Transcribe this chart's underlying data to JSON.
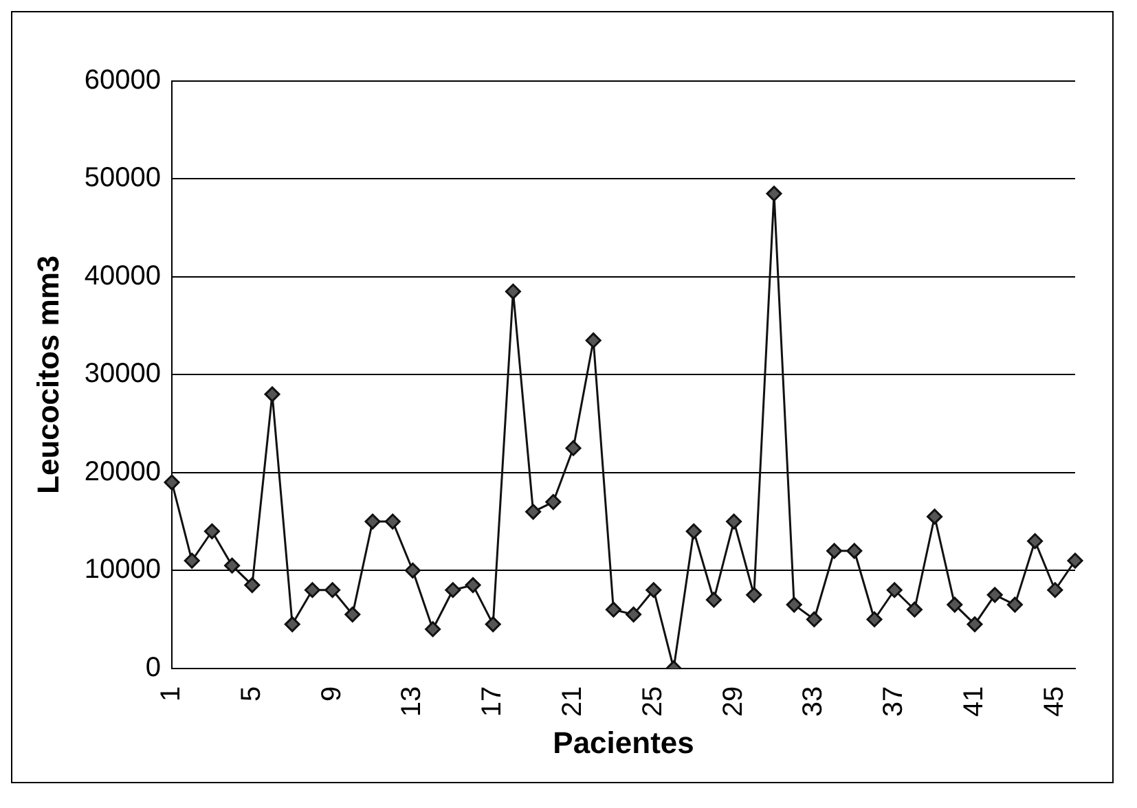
{
  "chart_data": {
    "type": "line",
    "xlabel": "Pacientes",
    "ylabel": "Leucocitos mm3",
    "categories": [
      "1",
      null,
      null,
      null,
      "5",
      null,
      null,
      null,
      "9",
      null,
      null,
      null,
      "13",
      null,
      null,
      null,
      "17",
      null,
      null,
      null,
      "21",
      null,
      null,
      null,
      "25",
      null,
      null,
      null,
      "29",
      null,
      null,
      null,
      "33",
      null,
      null,
      null,
      "37",
      null,
      null,
      null,
      "41",
      null,
      null,
      null,
      "45",
      null
    ],
    "series": [
      {
        "color": "#111111",
        "values": [
          19000,
          11000,
          14000,
          10500,
          8500,
          28000,
          4500,
          8000,
          8000,
          5500,
          15000,
          15000,
          10000,
          4000,
          8000,
          8500,
          4500,
          38500,
          16000,
          17000,
          22500,
          33500,
          6000,
          5500,
          8000,
          0,
          14000,
          7000,
          15000,
          7500,
          48500,
          6500,
          5000,
          12000,
          12000,
          5000,
          8000,
          6000,
          15500,
          6500,
          4500,
          7500,
          6500,
          13000,
          8000,
          11000
        ]
      }
    ],
    "ylim": [
      0,
      60000
    ],
    "yticks": [
      0,
      10000,
      20000,
      30000,
      40000,
      50000,
      60000
    ],
    "grid": "y",
    "legend": false,
    "marker": "diamond",
    "line_style": "solid"
  }
}
